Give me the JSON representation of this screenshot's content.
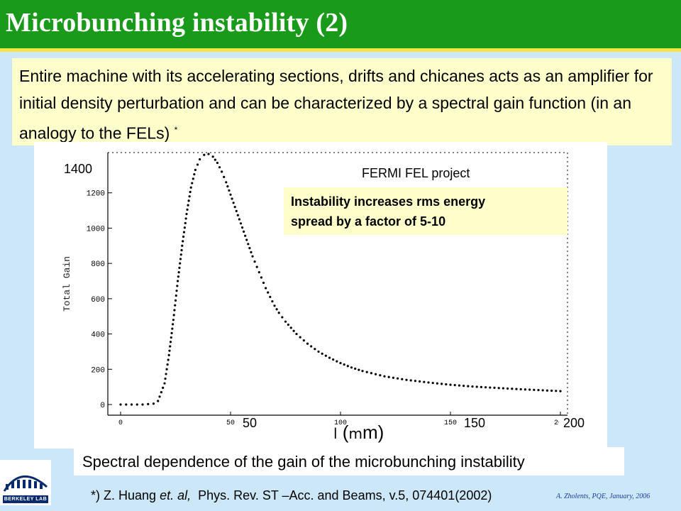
{
  "slide": {
    "title": "Microbunching instability (2)",
    "intro_text": "Entire machine with its accelerating sections, drifts and chicanes acts as an amplifier for initial density perturbation and can be characterized by a spectral gain function (in an analogy to the FELs)",
    "intro_footnote_mark": "*",
    "chart_project_label": "FERMI FEL project",
    "callout_line1": "Instability increases  rms energy",
    "callout_line2": "spread by a factor of 5-10",
    "caption": "Spectral dependence of the gain of the microbunching instability",
    "reference_mark": "*)",
    "reference_text_a": "Z. Huang",
    "reference_text_b": "et. al,",
    "reference_text_c": "Phys. Rev. ST –Acc. and Beams, v.5, 074401(2002)",
    "credit": "A. Zholents, PQE, January, 2006",
    "logo_text": "BERKELEY LAB",
    "xlabel_prefix": "l",
    "xlabel_unit_open": "(",
    "xlabel_unit_sym": "m",
    "xlabel_unit_rest": "m)",
    "overlay_ytick": "1400",
    "overlay_xticks": [
      "50",
      "150",
      "200"
    ]
  },
  "chart_data": {
    "type": "scatter",
    "ylabel": "Total Gain",
    "xlabel": "l (mm)",
    "xlim": [
      0,
      200
    ],
    "ylim": [
      0,
      1400
    ],
    "yticks": [
      0,
      200,
      400,
      600,
      800,
      1000,
      1200
    ],
    "xticks": [
      0,
      50,
      100,
      150,
      200
    ],
    "xtick_labels": [
      "0",
      "50",
      "100",
      "150",
      "200"
    ],
    "marker_color": "#000000",
    "x": [
      0,
      5,
      10,
      15,
      17,
      20,
      22,
      24,
      26,
      28,
      30,
      32,
      34,
      36,
      38,
      40,
      42,
      44,
      46,
      48,
      50,
      52,
      54,
      56,
      58,
      60,
      62,
      64,
      66,
      68,
      70,
      72,
      75,
      80,
      85,
      90,
      95,
      100,
      105,
      110,
      120,
      130,
      140,
      150,
      160,
      170,
      180,
      190,
      200
    ],
    "y": [
      0,
      0,
      0,
      5,
      20,
      120,
      280,
      480,
      700,
      900,
      1080,
      1230,
      1330,
      1390,
      1415,
      1420,
      1405,
      1370,
      1320,
      1260,
      1190,
      1120,
      1050,
      980,
      910,
      840,
      780,
      720,
      660,
      610,
      560,
      520,
      470,
      400,
      345,
      300,
      265,
      235,
      210,
      190,
      160,
      140,
      125,
      112,
      102,
      95,
      88,
      82,
      76
    ]
  }
}
